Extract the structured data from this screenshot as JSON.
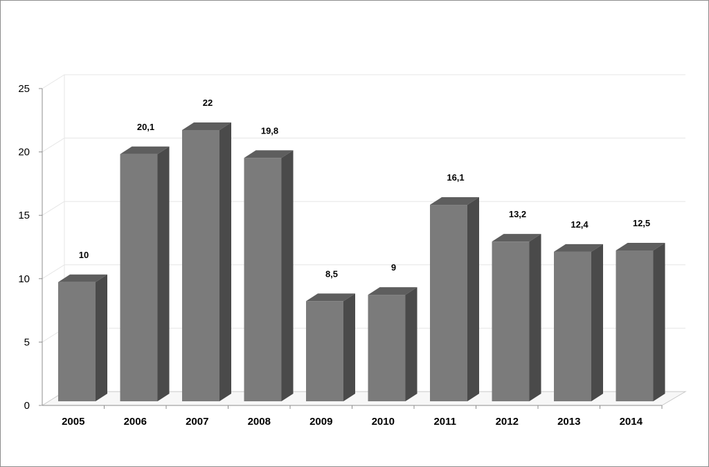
{
  "chart_data": {
    "type": "bar",
    "style": "3d-column",
    "categories": [
      "2005",
      "2006",
      "2007",
      "2008",
      "2009",
      "2010",
      "2011",
      "2012",
      "2013",
      "2014"
    ],
    "series": [
      {
        "values": [
          10,
          20.1,
          22,
          19.8,
          8.5,
          9,
          16.1,
          13.2,
          12.4,
          12.5
        ],
        "data_labels": [
          "10",
          "20,1",
          "22",
          "19,8",
          "8,5",
          "9",
          "16,1",
          "13,2",
          "12,4",
          "12,5"
        ]
      }
    ],
    "ylim": [
      0,
      25
    ],
    "yticks": [
      "0",
      "5",
      "10",
      "15",
      "20",
      "25"
    ],
    "grid": true,
    "legend": "none",
    "colors": {
      "bar_front": "#7b7b7b",
      "bar_side": "#4a4a4a",
      "bar_top": "#5e5e5e",
      "grid": "#e6e6e6"
    }
  }
}
